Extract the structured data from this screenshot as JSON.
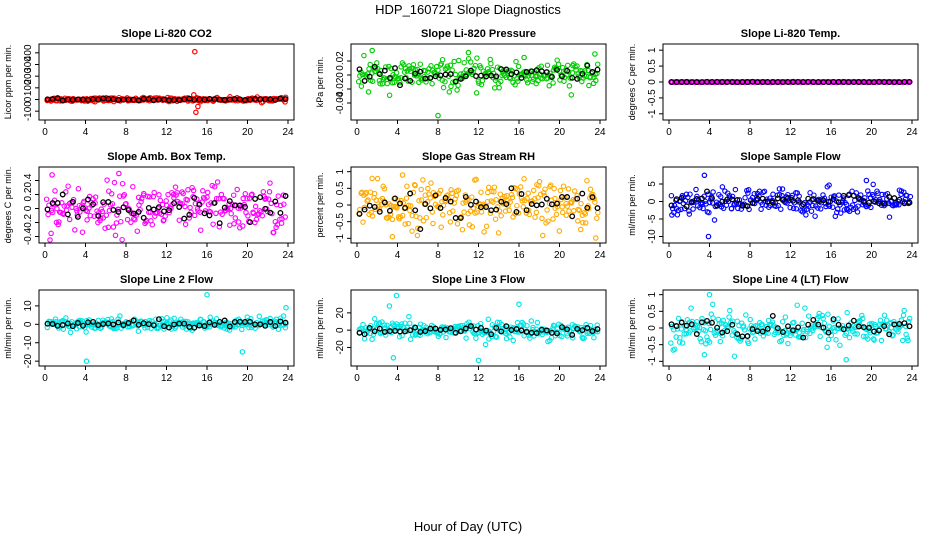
{
  "figure": {
    "title": "HDP_160721  Slope Diagnostics",
    "xlabel": "Hour of Day (UTC)"
  },
  "chart_data": [
    {
      "type": "scatter",
      "title": "Slope Li-820 CO2",
      "ylabel": "Licor ppm per min.",
      "color": "#ff0000",
      "xlim": [
        0,
        24
      ],
      "ylim": [
        -150,
        450
      ],
      "xticks": [
        0,
        4,
        8,
        12,
        16,
        20,
        24
      ],
      "yticks": [
        -100,
        0,
        100,
        200,
        300,
        400
      ],
      "noise": 8,
      "mean": 0,
      "spikes": [
        [
          14.8,
          410
        ],
        [
          14.9,
          -110
        ],
        [
          15.1,
          -60
        ],
        [
          14.7,
          40
        ]
      ],
      "outliers": []
    },
    {
      "type": "scatter",
      "title": "Slope Li-820 Pressure",
      "ylabel": "kPa per min.",
      "color": "#00cc00",
      "xlim": [
        0,
        24
      ],
      "ylim": [
        -0.06,
        0.04
      ],
      "xticks": [
        0,
        4,
        8,
        12,
        16,
        20,
        24
      ],
      "yticks": [
        -0.04,
        -0.02,
        0.0,
        0.02
      ],
      "noise": 0.01,
      "mean": 0,
      "spikes": [
        [
          1.5,
          0.035
        ],
        [
          8.0,
          -0.058
        ],
        [
          11.0,
          0.032
        ],
        [
          23.5,
          0.03
        ],
        [
          16.5,
          0.025
        ]
      ],
      "outliers": []
    },
    {
      "type": "scatter",
      "title": "Slope Li-820 Temp.",
      "ylabel": "degrees C per min.",
      "color": "#ff00ff",
      "xlim": [
        0,
        24
      ],
      "ylim": [
        -1.1,
        1.1
      ],
      "xticks": [
        0,
        4,
        8,
        12,
        16,
        20,
        24
      ],
      "yticks": [
        -1.0,
        -0.5,
        0.0,
        0.5,
        1.0
      ],
      "noise": 0.005,
      "mean": 0,
      "spikes": [],
      "outliers": []
    },
    {
      "type": "scatter",
      "title": "Slope Amb. Box Temp.",
      "ylabel": "degrees C per min.",
      "color": "#ff00ff",
      "xlim": [
        0,
        24
      ],
      "ylim": [
        -0.45,
        0.55
      ],
      "xticks": [
        0,
        4,
        8,
        12,
        16,
        20,
        24
      ],
      "yticks": [
        -0.4,
        -0.2,
        0.0,
        0.2,
        0.4
      ],
      "noise": 0.17,
      "mean": 0,
      "spikes": [
        [
          7.3,
          0.5
        ],
        [
          0.7,
          0.48
        ]
      ],
      "outliers": []
    },
    {
      "type": "scatter",
      "title": "Slope Gas Stream RH",
      "ylabel": "percent per min.",
      "color": "#ffaa00",
      "xlim": [
        0,
        24
      ],
      "ylim": [
        -1.05,
        1.05
      ],
      "xticks": [
        0,
        4,
        8,
        12,
        16,
        20,
        24
      ],
      "yticks": [
        -1.0,
        -0.5,
        0.0,
        0.5,
        1.0
      ],
      "noise": 0.35,
      "mean": 0,
      "spikes": [
        [
          3.5,
          -0.95
        ],
        [
          4.5,
          0.9
        ]
      ],
      "outliers": []
    },
    {
      "type": "scatter",
      "title": "Slope Sample Flow",
      "ylabel": "ml/min per min.",
      "color": "#0000ff",
      "xlim": [
        0,
        24
      ],
      "ylim": [
        -11,
        9
      ],
      "xticks": [
        0,
        4,
        8,
        12,
        16,
        20,
        24
      ],
      "yticks": [
        -10,
        -5,
        0,
        5
      ],
      "noise": 1.8,
      "mean": 0,
      "spikes": [
        [
          3.9,
          -10
        ],
        [
          3.5,
          7.5
        ],
        [
          19.5,
          6
        ]
      ],
      "outliers": []
    },
    {
      "type": "scatter",
      "title": "Slope Line 2 Flow",
      "ylabel": "ml/min per min.",
      "color": "#00e5e5",
      "xlim": [
        0,
        24
      ],
      "ylim": [
        -21,
        17
      ],
      "xticks": [
        0,
        4,
        8,
        12,
        16,
        20,
        24
      ],
      "yticks": [
        -20,
        -10,
        0,
        10
      ],
      "noise": 1.8,
      "mean": 0,
      "spikes": [
        [
          4.1,
          -20
        ],
        [
          16,
          16
        ],
        [
          19.5,
          -15
        ],
        [
          23.8,
          9
        ]
      ],
      "outliers": []
    },
    {
      "type": "scatter",
      "title": "Slope Line 3 Flow",
      "ylabel": "ml/min per min.",
      "color": "#00e5e5",
      "xlim": [
        0,
        24
      ],
      "ylim": [
        -38,
        43
      ],
      "xticks": [
        0,
        4,
        8,
        12,
        16,
        20,
        24
      ],
      "yticks": [
        -20,
        0,
        20
      ],
      "noise": 5,
      "mean": 0,
      "spikes": [
        [
          3.9,
          40
        ],
        [
          3.6,
          -32
        ],
        [
          3.2,
          28
        ],
        [
          16,
          30
        ],
        [
          12,
          -35
        ]
      ],
      "outliers": []
    },
    {
      "type": "scatter",
      "title": "Slope Line 4 (LT) Flow",
      "ylabel": "ml/min per min.",
      "color": "#00e5e5",
      "xlim": [
        0,
        24
      ],
      "ylim": [
        -1.05,
        1.05
      ],
      "xticks": [
        0,
        4,
        8,
        12,
        16,
        20,
        24
      ],
      "yticks": [
        -1.0,
        -0.5,
        0.0,
        0.5,
        1.0
      ],
      "noise": 0.25,
      "mean": 0,
      "spikes": [
        [
          4.0,
          1.0
        ],
        [
          3.5,
          -0.8
        ],
        [
          17.5,
          -0.95
        ]
      ],
      "outliers": []
    }
  ]
}
